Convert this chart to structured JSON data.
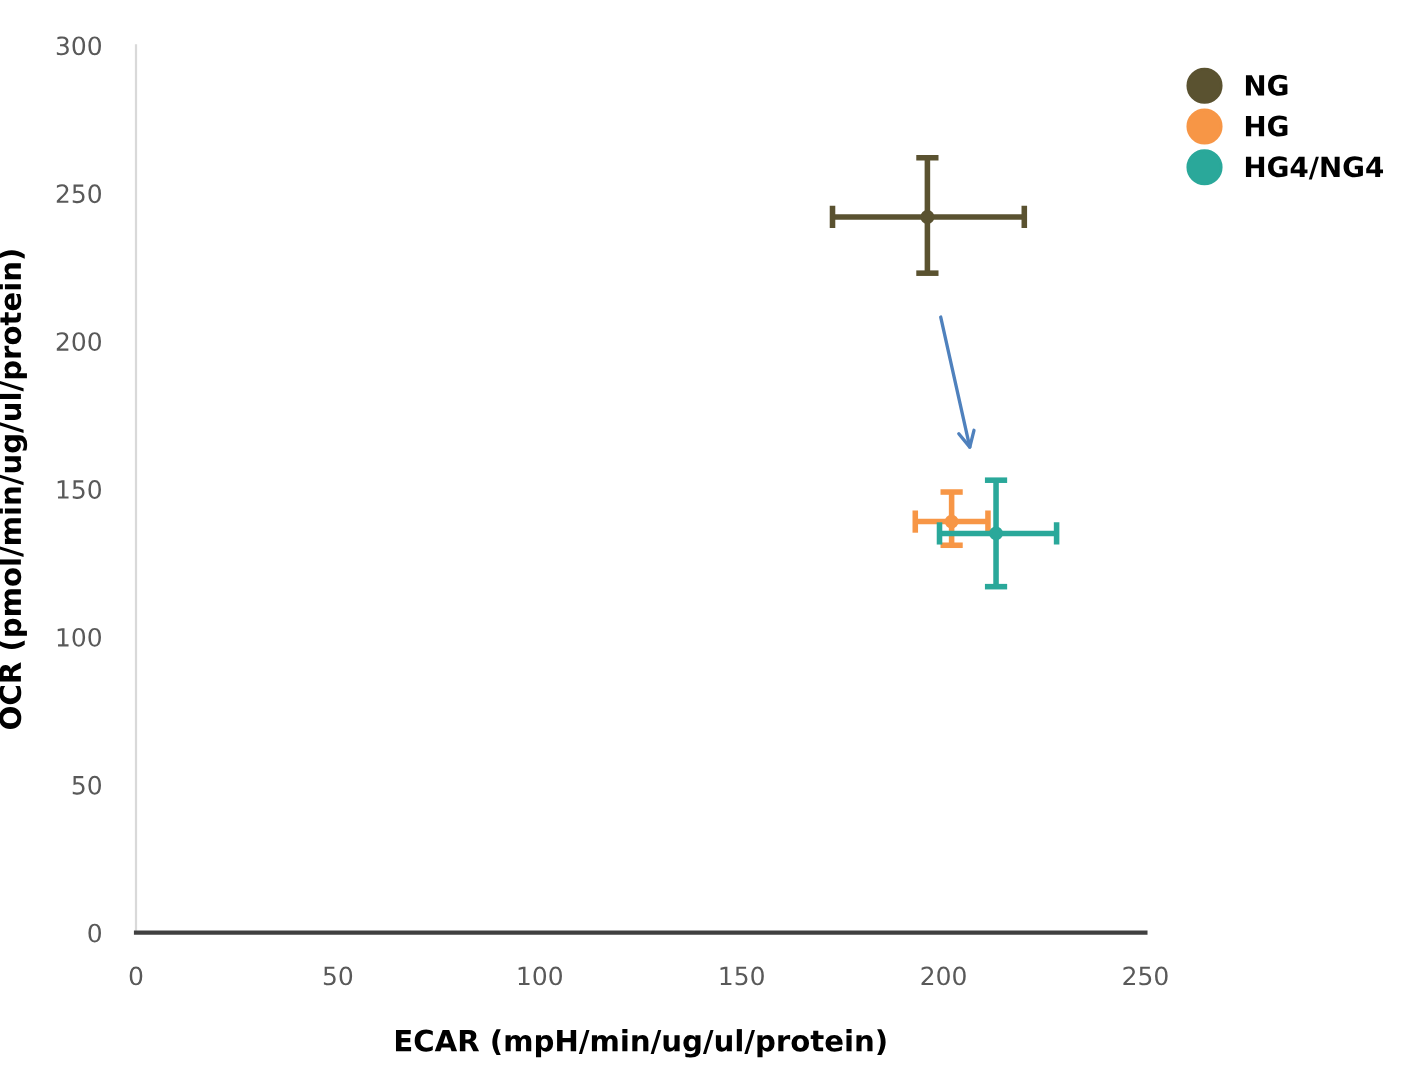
{
  "chart_data": {
    "type": "scatter",
    "xlabel": "ECAR (mpH/min/ug/ul/protein)",
    "ylabel": "OCR (pmol/min/ug/ul/protein)",
    "xlim": [
      0,
      250
    ],
    "xticks": [
      0,
      50,
      100,
      150,
      200,
      250
    ],
    "ylim": [
      0,
      300
    ],
    "yticks": [
      0,
      50,
      100,
      150,
      200,
      250,
      300
    ],
    "grid": false,
    "legend": "right",
    "marker": "circle",
    "series": [
      {
        "name": "NG",
        "color": "#5a5230",
        "x": [
          196
        ],
        "values": [
          242
        ],
        "xerrors": [
          [
            172.5,
            220
          ]
        ],
        "errors": [
          [
            223,
            262
          ]
        ]
      },
      {
        "name": "HG",
        "color": "#f79646",
        "x": [
          202
        ],
        "values": [
          139
        ],
        "xerrors": [
          [
            193,
            211
          ]
        ],
        "errors": [
          [
            131,
            149
          ]
        ]
      },
      {
        "name": "HG4/NG4",
        "color": "#2aa89a",
        "x": [
          213
        ],
        "values": [
          135
        ],
        "xerrors": [
          [
            199,
            228
          ]
        ],
        "errors": [
          [
            117,
            153
          ]
        ]
      }
    ]
  }
}
